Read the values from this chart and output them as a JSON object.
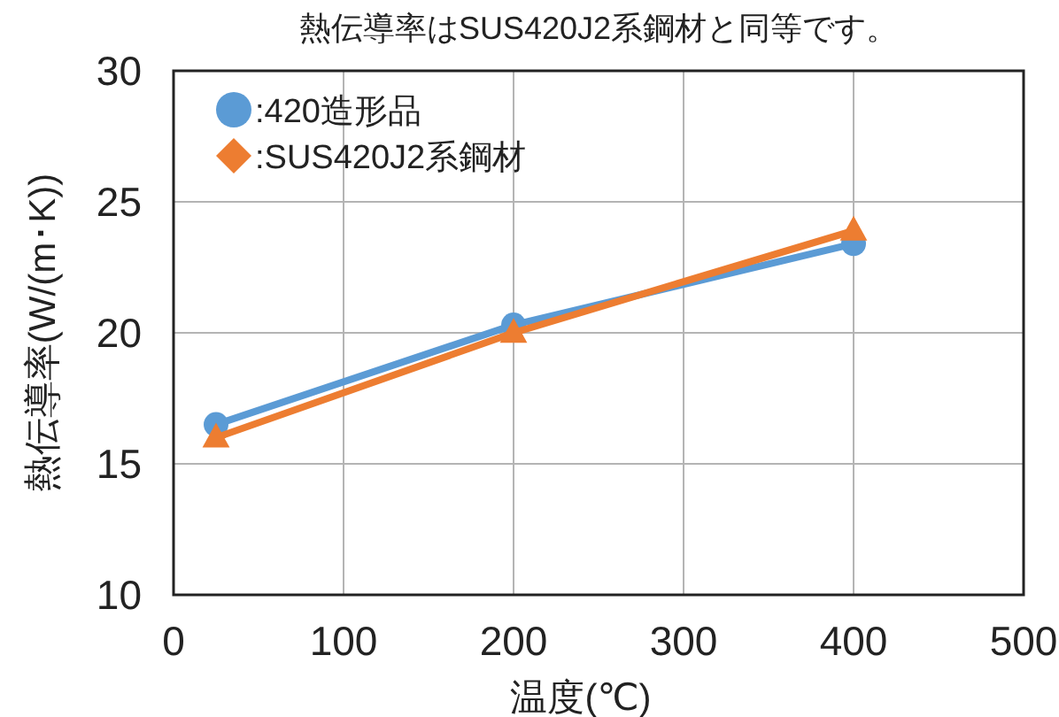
{
  "chart_data": {
    "type": "line",
    "title": "熱伝導率はSUS420J2系鋼材と同等です。",
    "xlabel": "温度(℃)",
    "ylabel": "熱伝導率(W/(m･K))",
    "xlim": [
      0,
      500
    ],
    "xticks": [
      0,
      100,
      200,
      300,
      400,
      500
    ],
    "ylim": [
      10,
      30
    ],
    "yticks": [
      10,
      15,
      20,
      25,
      30
    ],
    "grid": true,
    "legend": "top left",
    "series": [
      {
        "name": ":420造形品",
        "color": "#5b9bd5",
        "marker": "circle",
        "x": [
          25,
          200,
          400
        ],
        "values": [
          16.5,
          20.3,
          23.4
        ]
      },
      {
        "name": ":SUS420J2系鋼材",
        "color": "#ed7d31",
        "marker": "triangle",
        "x": [
          25,
          200,
          400
        ],
        "values": [
          16.0,
          20.0,
          23.9
        ]
      }
    ]
  }
}
